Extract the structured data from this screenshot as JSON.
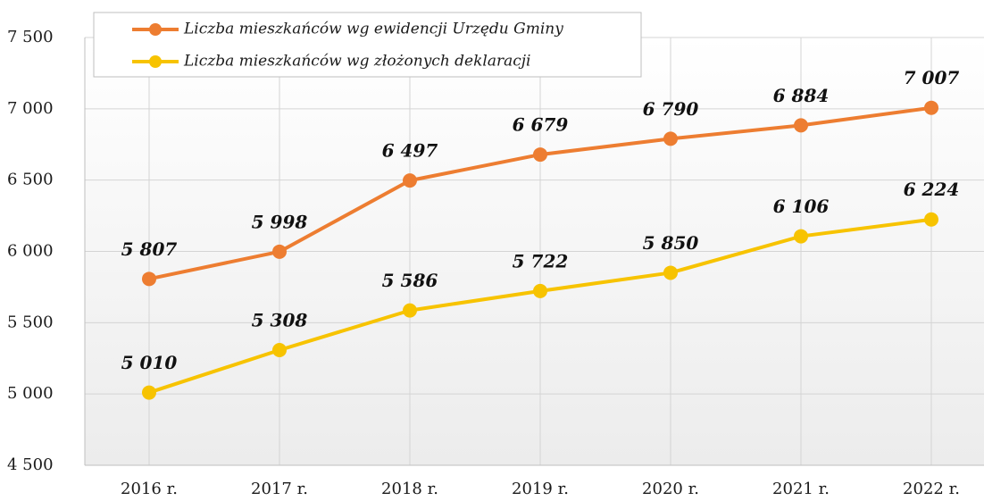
{
  "chart_data": {
    "type": "line",
    "categories": [
      "2016 r.",
      "2017 r.",
      "2018 r.",
      "2019 r.",
      "2020 r.",
      "2021 r.",
      "2022 r."
    ],
    "series": [
      {
        "name": "Liczba mieszkańców wg ewidencji Urzędu Gminy",
        "color": "#ED7D31",
        "values": [
          5807,
          5998,
          6497,
          6679,
          6790,
          6884,
          7007
        ],
        "value_labels": [
          "5 807",
          "5 998",
          "6 497",
          "6 679",
          "6 790",
          "6 884",
          "7 007"
        ]
      },
      {
        "name": "Liczba mieszkańców wg złożonych deklaracji",
        "color": "#F7C300",
        "values": [
          5010,
          5308,
          5586,
          5722,
          5850,
          6106,
          6224
        ],
        "value_labels": [
          "5 010",
          "5 308",
          "5 586",
          "5 722",
          "5 850",
          "6 106",
          "6 224"
        ]
      }
    ],
    "ylim": [
      4500,
      7500
    ],
    "yticks": [
      {
        "value": 4500,
        "label": "4 500"
      },
      {
        "value": 5000,
        "label": "5 000"
      },
      {
        "value": 5500,
        "label": "5 500"
      },
      {
        "value": 6000,
        "label": "6 000"
      },
      {
        "value": 6500,
        "label": "6 500"
      },
      {
        "value": 7000,
        "label": "7 000"
      },
      {
        "value": 7500,
        "label": "7 500"
      }
    ],
    "grid": true,
    "legend": "top-left"
  }
}
